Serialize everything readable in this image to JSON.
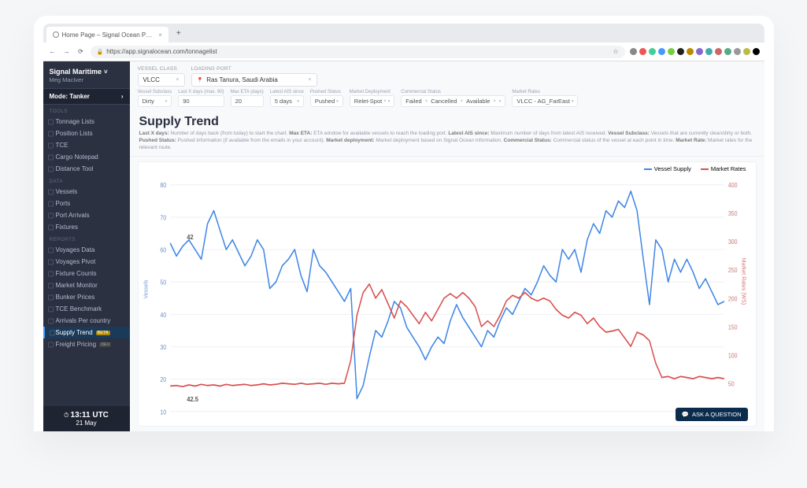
{
  "browser": {
    "tab_title": "Home Page – Signal Ocean P…",
    "url": "https://app.signalocean.com/tonnagelist",
    "ext_colors": [
      "#888",
      "#e55",
      "#4c9",
      "#49f",
      "#7c4",
      "#222",
      "#b80",
      "#86c",
      "#4aa",
      "#c66",
      "#5a8",
      "#999",
      "#bb4",
      "#000"
    ]
  },
  "org": {
    "name": "Signal Maritime",
    "user": "Meg MacIver"
  },
  "mode": {
    "label": "Mode: Tanker"
  },
  "sidebar": {
    "sections": [
      {
        "label": "TOOLS",
        "items": [
          {
            "label": "Tonnage Lists"
          },
          {
            "label": "Position Lists"
          },
          {
            "label": "TCE"
          },
          {
            "label": "Cargo Notepad"
          },
          {
            "label": "Distance Tool"
          }
        ]
      },
      {
        "label": "DATA",
        "items": [
          {
            "label": "Vessels"
          },
          {
            "label": "Ports"
          },
          {
            "label": "Port Arrivals"
          },
          {
            "label": "Fixtures"
          }
        ]
      },
      {
        "label": "REPORTS",
        "items": [
          {
            "label": "Voyages Data"
          },
          {
            "label": "Voyages Pivot"
          },
          {
            "label": "Fixture Counts"
          },
          {
            "label": "Market Monitor"
          },
          {
            "label": "Bunker Prices"
          },
          {
            "label": "TCE Benchmark"
          },
          {
            "label": "Arrivals Per country"
          },
          {
            "label": "Supply Trend",
            "active": true,
            "badge": "BETA"
          },
          {
            "label": "Freight Pricing",
            "badge": "DEV"
          }
        ]
      }
    ]
  },
  "clock": {
    "time": "13:11 UTC",
    "date": "21 May"
  },
  "top_filters": {
    "vessel_class": {
      "label": "VESSEL CLASS",
      "value": "VLCC"
    },
    "loading_port": {
      "label": "LOADING PORT",
      "value": "Ras Tanura, Saudi Arabia"
    }
  },
  "sub_filters": [
    {
      "label": "Vessel Subclass",
      "value": "Dirty",
      "chev": true
    },
    {
      "label": "Last X days (max. 90)",
      "value": "90"
    },
    {
      "label": "Max ETA (days)",
      "value": "20"
    },
    {
      "label": "Latest AIS since",
      "value": "5 days",
      "chev": true
    },
    {
      "label": "Pushed Status",
      "value": "Pushed",
      "chev": true
    },
    {
      "label": "Market Deployment",
      "value": "Relet-Spot",
      "close": true,
      "chev": true
    },
    {
      "label": "Commercial Status",
      "values": [
        "Failed",
        "Cancelled",
        "Available"
      ],
      "chev": true
    },
    {
      "label": "Market Rates",
      "value": "VLCC - AG_FarEast",
      "chev": true
    }
  ],
  "page": {
    "title": "Supply Trend",
    "desc": "Last X days: Number of days back (from today) to start the chart. Max ETA: ETA window for available vessels to reach the loading port. Latest AIS since: Maximum number of days from latest AIS received. Vessel Subclass: Vessels that are currently clean/dirty or both. Pushed Status: Pushed information (if available from the emails in your account). Market deployment: Market deployment based on Signal Ocean information. Commercial Status: Commercial status of the vessel at each point in time. Market Rate: Market rates for the relevant route."
  },
  "chart": {
    "legend": [
      {
        "label": "Vessel Supply",
        "color": "#3f87e5"
      },
      {
        "label": "Market Rates",
        "color": "#d94f4f"
      }
    ],
    "y_left": {
      "label": "Vessels",
      "min": 10,
      "max": 80,
      "ticks": [
        10,
        20,
        30,
        40,
        50,
        60,
        70,
        80
      ],
      "color": "#6a8fc7"
    },
    "y_right": {
      "label": "Market Rates (WS)",
      "min": 0,
      "max": 400,
      "ticks": [
        50,
        100,
        150,
        200,
        250,
        300,
        350,
        400
      ],
      "color": "#c77a7a"
    },
    "grid_color": "#f1f2f7",
    "callouts": [
      {
        "text": "42",
        "x": 0.03,
        "yv": 62
      },
      {
        "text": "42.5",
        "x": 0.03,
        "yv": 12
      }
    ],
    "series_supply": {
      "color": "#3f87e5",
      "width": 1.5,
      "data": [
        62,
        58,
        61,
        63,
        60,
        57,
        68,
        72,
        66,
        60,
        63,
        59,
        55,
        58,
        63,
        60,
        48,
        50,
        55,
        57,
        60,
        52,
        47,
        60,
        55,
        53,
        50,
        47,
        44,
        48,
        14,
        18,
        27,
        35,
        33,
        38,
        44,
        42,
        36,
        33,
        30,
        26,
        30,
        33,
        31,
        38,
        43,
        39,
        36,
        33,
        30,
        35,
        33,
        38,
        42,
        40,
        44,
        48,
        46,
        50,
        55,
        52,
        50,
        60,
        57,
        60,
        53,
        63,
        68,
        65,
        72,
        70,
        75,
        73,
        78,
        72,
        57,
        43,
        63,
        60,
        50,
        57,
        53,
        57,
        53,
        48,
        51,
        47,
        43,
        44
      ]
    },
    "series_rates": {
      "color": "#d94f4f",
      "width": 1.5,
      "data": [
        45,
        46,
        44,
        47,
        45,
        48,
        46,
        47,
        45,
        48,
        46,
        47,
        48,
        46,
        47,
        49,
        47,
        48,
        50,
        49,
        48,
        50,
        48,
        49,
        50,
        48,
        50,
        49,
        50,
        90,
        170,
        210,
        225,
        200,
        215,
        190,
        165,
        195,
        185,
        170,
        155,
        175,
        160,
        180,
        200,
        208,
        200,
        210,
        200,
        185,
        150,
        160,
        150,
        170,
        195,
        205,
        200,
        210,
        200,
        195,
        200,
        195,
        180,
        170,
        165,
        175,
        170,
        155,
        165,
        150,
        140,
        142,
        145,
        130,
        115,
        140,
        135,
        125,
        85,
        60,
        62,
        58,
        62,
        60,
        58,
        62,
        60,
        58,
        60,
        58
      ]
    }
  },
  "ask_button": "ASK A QUESTION"
}
